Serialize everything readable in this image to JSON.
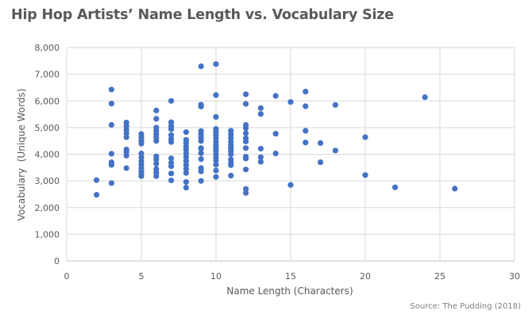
{
  "chart_data": {
    "type": "scatter",
    "title": "Hip Hop Artists’ Name Length vs. Vocabulary Size",
    "xlabel": "Name Length (Characters)",
    "ylabel": "Vocabulary  (Unique Words)",
    "source": "Source: The Pudding (2018)",
    "xlim": [
      0,
      30
    ],
    "ylim": [
      0,
      8000
    ],
    "x_ticks": [
      "0",
      "5",
      "10",
      "15",
      "20",
      "25",
      "30"
    ],
    "y_ticks": [
      "0",
      "1,000",
      "2,000",
      "3,000",
      "4,000",
      "5,000",
      "6,000",
      "7,000",
      "8,000"
    ],
    "grid": "on",
    "marker_color": "#4472C4",
    "points": [
      [
        2,
        3030
      ],
      [
        2,
        2480
      ],
      [
        3,
        6430
      ],
      [
        3,
        5900
      ],
      [
        3,
        5100
      ],
      [
        3,
        4020
      ],
      [
        3,
        3700
      ],
      [
        3,
        3600
      ],
      [
        3,
        2920
      ],
      [
        4,
        5190
      ],
      [
        4,
        5060
      ],
      [
        4,
        4920
      ],
      [
        4,
        4790
      ],
      [
        4,
        4640
      ],
      [
        4,
        4180
      ],
      [
        4,
        4090
      ],
      [
        4,
        3950
      ],
      [
        4,
        3480
      ],
      [
        5,
        4760
      ],
      [
        5,
        4640
      ],
      [
        5,
        4510
      ],
      [
        5,
        4400
      ],
      [
        5,
        4030
      ],
      [
        5,
        3880
      ],
      [
        5,
        3740
      ],
      [
        5,
        3610
      ],
      [
        5,
        3480
      ],
      [
        5,
        3350
      ],
      [
        5,
        3240
      ],
      [
        5,
        3180
      ],
      [
        6,
        5640
      ],
      [
        6,
        5330
      ],
      [
        6,
        5000
      ],
      [
        6,
        4880
      ],
      [
        6,
        4760
      ],
      [
        6,
        4630
      ],
      [
        6,
        4500
      ],
      [
        6,
        3920
      ],
      [
        6,
        3800
      ],
      [
        6,
        3650
      ],
      [
        6,
        3450
      ],
      [
        6,
        3310
      ],
      [
        6,
        3180
      ],
      [
        7,
        6000
      ],
      [
        7,
        5200
      ],
      [
        7,
        5060
      ],
      [
        7,
        4940
      ],
      [
        7,
        4720
      ],
      [
        7,
        4580
      ],
      [
        7,
        4460
      ],
      [
        7,
        3850
      ],
      [
        7,
        3680
      ],
      [
        7,
        3550
      ],
      [
        7,
        3280
      ],
      [
        7,
        3020
      ],
      [
        8,
        4830
      ],
      [
        8,
        4540
      ],
      [
        8,
        4420
      ],
      [
        8,
        4290
      ],
      [
        8,
        4180
      ],
      [
        8,
        4030
      ],
      [
        8,
        3900
      ],
      [
        8,
        3750
      ],
      [
        8,
        3600
      ],
      [
        8,
        3450
      ],
      [
        8,
        3300
      ],
      [
        8,
        2960
      ],
      [
        8,
        2750
      ],
      [
        9,
        7300
      ],
      [
        9,
        5860
      ],
      [
        9,
        5790
      ],
      [
        9,
        4870
      ],
      [
        9,
        4750
      ],
      [
        9,
        4620
      ],
      [
        9,
        4500
      ],
      [
        9,
        4230
      ],
      [
        9,
        4210
      ],
      [
        9,
        4040
      ],
      [
        9,
        3820
      ],
      [
        9,
        3480
      ],
      [
        9,
        3360
      ],
      [
        9,
        3000
      ],
      [
        10,
        7380
      ],
      [
        10,
        6220
      ],
      [
        10,
        5400
      ],
      [
        10,
        4950
      ],
      [
        10,
        4840
      ],
      [
        10,
        4730
      ],
      [
        10,
        4590
      ],
      [
        10,
        4460
      ],
      [
        10,
        4340
      ],
      [
        10,
        4230
      ],
      [
        10,
        4110
      ],
      [
        10,
        4000
      ],
      [
        10,
        3880
      ],
      [
        10,
        3770
      ],
      [
        10,
        3610
      ],
      [
        10,
        3390
      ],
      [
        10,
        3150
      ],
      [
        11,
        4880
      ],
      [
        11,
        4750
      ],
      [
        11,
        4620
      ],
      [
        11,
        4480
      ],
      [
        11,
        4350
      ],
      [
        11,
        4240
      ],
      [
        11,
        4120
      ],
      [
        11,
        4000
      ],
      [
        11,
        3800
      ],
      [
        11,
        3680
      ],
      [
        11,
        3590
      ],
      [
        11,
        3200
      ],
      [
        12,
        6250
      ],
      [
        12,
        5890
      ],
      [
        12,
        5100
      ],
      [
        12,
        4980
      ],
      [
        12,
        4790
      ],
      [
        12,
        4600
      ],
      [
        12,
        4480
      ],
      [
        12,
        4230
      ],
      [
        12,
        3910
      ],
      [
        12,
        3840
      ],
      [
        12,
        3430
      ],
      [
        12,
        2700
      ],
      [
        12,
        2550
      ],
      [
        13,
        5730
      ],
      [
        13,
        5510
      ],
      [
        13,
        4210
      ],
      [
        13,
        3890
      ],
      [
        13,
        3720
      ],
      [
        14,
        6190
      ],
      [
        14,
        4770
      ],
      [
        14,
        4030
      ],
      [
        15,
        5960
      ],
      [
        15,
        2850
      ],
      [
        16,
        6350
      ],
      [
        16,
        5800
      ],
      [
        16,
        4880
      ],
      [
        16,
        4440
      ],
      [
        17,
        4420
      ],
      [
        17,
        3700
      ],
      [
        18,
        5850
      ],
      [
        18,
        4140
      ],
      [
        20,
        4640
      ],
      [
        20,
        3220
      ],
      [
        22,
        2760
      ],
      [
        24,
        6140
      ],
      [
        26,
        2710
      ]
    ]
  }
}
